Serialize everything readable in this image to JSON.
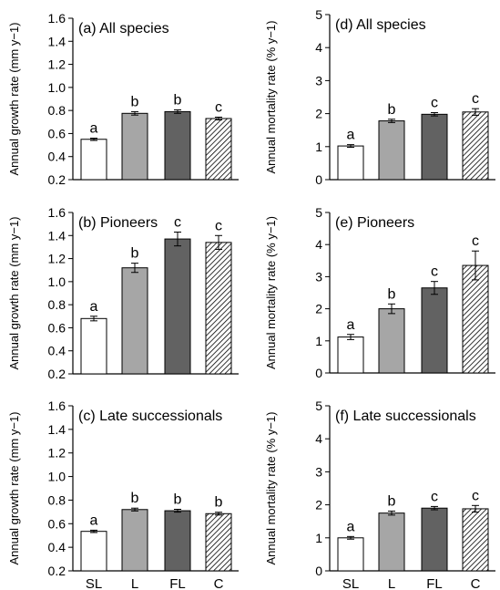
{
  "chart_data": [
    {
      "type": "bar",
      "panel": "a",
      "title": "(a) All species",
      "ylabel": "Annual growth rate (mm y−1)",
      "ylim": [
        0.2,
        1.6
      ],
      "yticks": [
        "0.2",
        "0.4",
        "0.6",
        "0.8",
        "1.0",
        "1.2",
        "1.4",
        "1.6"
      ],
      "categories": [
        "SL",
        "L",
        "FL",
        "C"
      ],
      "values": [
        0.55,
        0.775,
        0.79,
        0.73
      ],
      "errors": [
        0.01,
        0.015,
        0.015,
        0.012
      ],
      "significance": [
        "a",
        "b",
        "b",
        "c"
      ],
      "show_xticklabels": false
    },
    {
      "type": "bar",
      "panel": "b",
      "title": "(b) Pioneers",
      "ylabel": "Annual growth rate (mm y−1)",
      "ylim": [
        0.2,
        1.6
      ],
      "yticks": [
        "0.2",
        "0.4",
        "0.6",
        "0.8",
        "1.0",
        "1.2",
        "1.4",
        "1.6"
      ],
      "categories": [
        "SL",
        "L",
        "FL",
        "C"
      ],
      "values": [
        0.68,
        1.12,
        1.37,
        1.34
      ],
      "errors": [
        0.02,
        0.04,
        0.06,
        0.06
      ],
      "significance": [
        "a",
        "b",
        "c",
        "c"
      ],
      "show_xticklabels": false
    },
    {
      "type": "bar",
      "panel": "c",
      "title": "(c) Late successionals",
      "ylabel": "Annual growth rate (mm y−1)",
      "ylim": [
        0.2,
        1.6
      ],
      "yticks": [
        "0.2",
        "0.4",
        "0.6",
        "0.8",
        "1.0",
        "1.2",
        "1.4",
        "1.6"
      ],
      "categories": [
        "SL",
        "L",
        "FL",
        "C"
      ],
      "values": [
        0.535,
        0.72,
        0.71,
        0.685
      ],
      "errors": [
        0.01,
        0.012,
        0.012,
        0.012
      ],
      "significance": [
        "a",
        "b",
        "b",
        "b"
      ],
      "show_xticklabels": true
    },
    {
      "type": "bar",
      "panel": "d",
      "title": "(d) All species",
      "ylabel": "Annual mortality rate (% y−1)",
      "ylim": [
        0,
        5
      ],
      "yticks": [
        "0",
        "1",
        "2",
        "3",
        "4",
        "5"
      ],
      "categories": [
        "SL",
        "L",
        "FL",
        "C"
      ],
      "values": [
        1.02,
        1.78,
        1.98,
        2.05
      ],
      "errors": [
        0.04,
        0.05,
        0.05,
        0.1
      ],
      "significance": [
        "a",
        "b",
        "c",
        "c"
      ],
      "show_xticklabels": false
    },
    {
      "type": "bar",
      "panel": "e",
      "title": "(e) Pioneers",
      "ylabel": "Annual mortality rate (% y−1)",
      "ylim": [
        0,
        5
      ],
      "yticks": [
        "0",
        "1",
        "2",
        "3",
        "4",
        "5"
      ],
      "categories": [
        "SL",
        "L",
        "FL",
        "C"
      ],
      "values": [
        1.12,
        2.0,
        2.65,
        3.35
      ],
      "errors": [
        0.08,
        0.15,
        0.2,
        0.45
      ],
      "significance": [
        "a",
        "b",
        "c",
        "c"
      ],
      "show_xticklabels": false
    },
    {
      "type": "bar",
      "panel": "f",
      "title": "(f) Late successionals",
      "ylabel": "Annual mortality rate (% y−1)",
      "ylim": [
        0,
        5
      ],
      "yticks": [
        "0",
        "1",
        "2",
        "3",
        "4",
        "5"
      ],
      "categories": [
        "SL",
        "L",
        "FL",
        "C"
      ],
      "values": [
        1.0,
        1.75,
        1.9,
        1.88
      ],
      "errors": [
        0.04,
        0.06,
        0.05,
        0.1
      ],
      "significance": [
        "a",
        "b",
        "c",
        "c"
      ],
      "show_xticklabels": true
    }
  ],
  "colors": {
    "SL": "#ffffff",
    "L": "#a6a6a6",
    "FL": "#626262",
    "C": "hatch"
  }
}
